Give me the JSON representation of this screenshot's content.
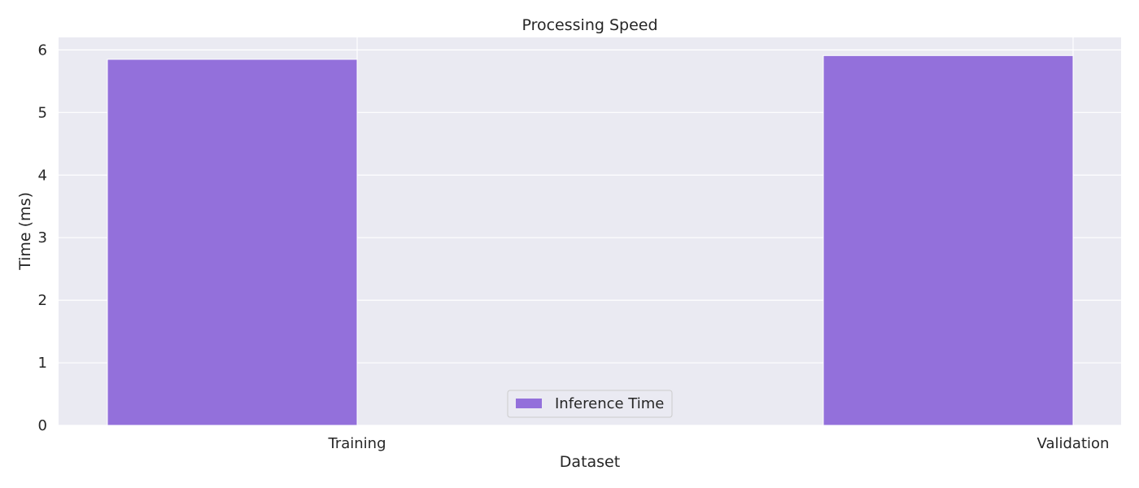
{
  "chart_data": {
    "type": "bar",
    "title": "Processing Speed",
    "xlabel": "Dataset",
    "ylabel": "Time (ms)",
    "categories": [
      "Training",
      "Validation"
    ],
    "series": [
      {
        "name": "Inference Time",
        "values": [
          5.85,
          5.91
        ],
        "color": "#9370DB"
      }
    ],
    "ylim": [
      0,
      6.2
    ],
    "yticks": [
      0,
      1,
      2,
      3,
      4,
      5,
      6
    ],
    "grid": true,
    "legend_position": "bottom-center",
    "background_color": "#EAEAF2",
    "grid_color": "#FFFFFF"
  }
}
